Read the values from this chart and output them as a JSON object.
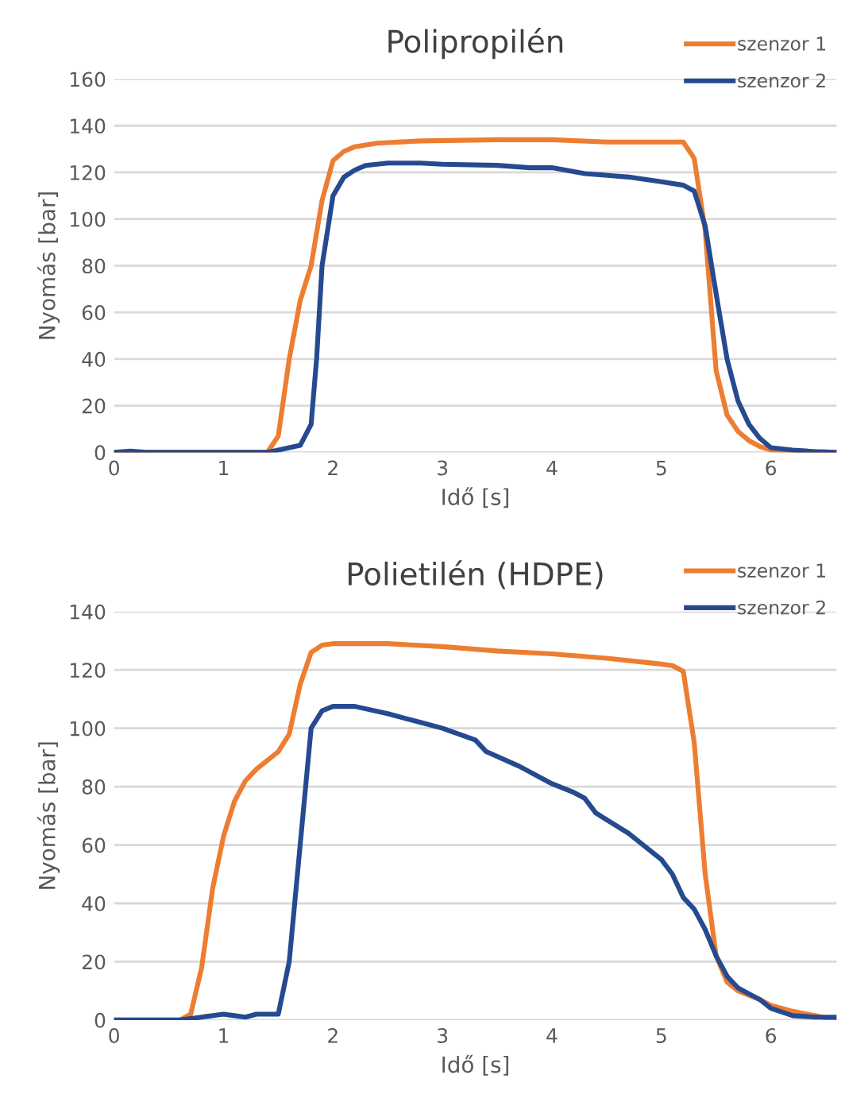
{
  "chart_data": [
    {
      "type": "line",
      "title": "Polipropilén",
      "xlabel": "Idő [s]",
      "ylabel": "Nyomás [bar]",
      "xlim": [
        0,
        6.6
      ],
      "xticks": [
        0,
        1,
        2,
        3,
        4,
        5,
        6
      ],
      "ylim": [
        0,
        160
      ],
      "yticks": [
        0,
        20,
        40,
        60,
        80,
        100,
        120,
        140,
        160
      ],
      "grid": "y",
      "legend": "top right",
      "series": [
        {
          "name": "szenzor 1",
          "color": "#ed7d31",
          "x": [
            0,
            1,
            1.4,
            1.5,
            1.6,
            1.7,
            1.8,
            1.9,
            2,
            2.1,
            2.2,
            2.4,
            2.8,
            3.5,
            4,
            4.5,
            5,
            5.2,
            5.3,
            5.4,
            5.5,
            5.6,
            5.7,
            5.8,
            5.9,
            6,
            6.3,
            6.6
          ],
          "values": [
            0,
            0,
            0,
            7,
            40,
            65,
            80,
            108,
            125,
            129,
            131,
            132.5,
            133.5,
            134,
            134,
            133,
            133,
            133,
            126,
            95,
            35,
            16,
            9,
            5,
            2.5,
            1,
            0.5,
            0
          ]
        },
        {
          "name": "szenzor 2",
          "color": "#264a8f",
          "x": [
            0,
            0.15,
            0.3,
            1.4,
            1.5,
            1.7,
            1.8,
            1.85,
            1.9,
            2,
            2.1,
            2.2,
            2.3,
            2.5,
            2.8,
            3,
            3.5,
            3.8,
            4,
            4.3,
            4.7,
            5,
            5.2,
            5.3,
            5.4,
            5.5,
            5.6,
            5.7,
            5.8,
            5.9,
            6,
            6.2,
            6.4,
            6.6
          ],
          "values": [
            0,
            0.5,
            0,
            0,
            1,
            3,
            12,
            40,
            80,
            110,
            118,
            121,
            123,
            124,
            124,
            123.5,
            123,
            122,
            122,
            119.5,
            118,
            116,
            114.5,
            112,
            97,
            68,
            40,
            22,
            12,
            6,
            2,
            1,
            0.3,
            0
          ]
        }
      ]
    },
    {
      "type": "line",
      "title": "Polietilén (HDPE)",
      "xlabel": "Idő [s]",
      "ylabel": "Nyomás [bar]",
      "xlim": [
        0,
        6.6
      ],
      "xticks": [
        0,
        1,
        2,
        3,
        4,
        5,
        6
      ],
      "ylim": [
        0,
        140
      ],
      "yticks": [
        0,
        20,
        40,
        60,
        80,
        100,
        120,
        140
      ],
      "grid": "y",
      "legend": "top right",
      "series": [
        {
          "name": "szenzor 1",
          "color": "#ed7d31",
          "x": [
            0,
            0.6,
            0.7,
            0.8,
            0.9,
            1,
            1.1,
            1.2,
            1.3,
            1.4,
            1.5,
            1.6,
            1.7,
            1.8,
            1.9,
            2,
            2.5,
            3,
            3.5,
            4,
            4.5,
            5,
            5.1,
            5.2,
            5.3,
            5.4,
            5.5,
            5.6,
            5.7,
            5.9,
            6,
            6.2,
            6.4,
            6.6
          ],
          "values": [
            0,
            0,
            2,
            18,
            45,
            63,
            75,
            82,
            86,
            89,
            92,
            98,
            115,
            126,
            128.5,
            129,
            129,
            128,
            126.5,
            125.5,
            124,
            122,
            121.5,
            119.5,
            95,
            50,
            22,
            13,
            10,
            7,
            5,
            3,
            1.5,
            0
          ]
        },
        {
          "name": "szenzor 2",
          "color": "#264a8f",
          "x": [
            0,
            0.6,
            0.8,
            1,
            1.1,
            1.2,
            1.3,
            1.5,
            1.6,
            1.7,
            1.8,
            1.9,
            2,
            2.2,
            2.5,
            2.8,
            3,
            3.3,
            3.4,
            3.7,
            4,
            4.2,
            4.3,
            4.4,
            4.7,
            5,
            5.1,
            5.2,
            5.3,
            5.4,
            5.5,
            5.6,
            5.7,
            5.8,
            5.9,
            6,
            6.2,
            6.4,
            6.6
          ],
          "values": [
            0,
            0,
            1,
            2,
            1.5,
            1,
            2,
            2,
            20,
            60,
            100,
            106,
            107.5,
            107.5,
            105,
            102,
            100,
            96,
            92,
            87,
            81,
            78,
            76,
            71,
            64,
            55,
            50,
            42,
            38,
            31,
            22,
            15,
            11,
            9,
            7,
            4,
            1.5,
            1,
            1
          ]
        }
      ]
    }
  ]
}
